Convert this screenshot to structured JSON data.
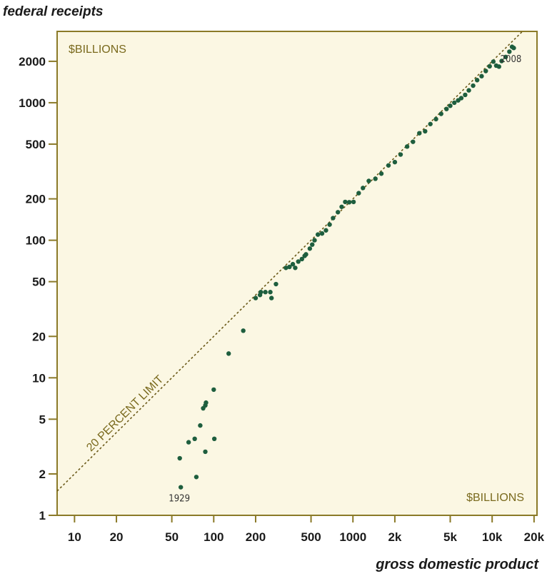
{
  "chart_data": {
    "type": "scatter",
    "ylabel": "federal receipts",
    "xlabel": "gross domestic product",
    "x_scale": "log",
    "y_scale": "log",
    "xlim": [
      7.5,
      21000
    ],
    "ylim": [
      1,
      3300
    ],
    "x_ticks": [
      {
        "value": 10,
        "label": "10"
      },
      {
        "value": 20,
        "label": "20"
      },
      {
        "value": 50,
        "label": "50"
      },
      {
        "value": 100,
        "label": "100"
      },
      {
        "value": 200,
        "label": "200"
      },
      {
        "value": 500,
        "label": "500"
      },
      {
        "value": 1000,
        "label": "1000"
      },
      {
        "value": 2000,
        "label": "2k"
      },
      {
        "value": 5000,
        "label": "5k"
      },
      {
        "value": 10000,
        "label": "10k"
      },
      {
        "value": 20000,
        "label": "20k"
      }
    ],
    "y_ticks": [
      {
        "value": 1,
        "label": "1"
      },
      {
        "value": 2,
        "label": "2"
      },
      {
        "value": 5,
        "label": "5"
      },
      {
        "value": 10,
        "label": "10"
      },
      {
        "value": 20,
        "label": "20"
      },
      {
        "value": 50,
        "label": "50"
      },
      {
        "value": 100,
        "label": "100"
      },
      {
        "value": 200,
        "label": "200"
      },
      {
        "value": 500,
        "label": "500"
      },
      {
        "value": 1000,
        "label": "1000"
      },
      {
        "value": 2000,
        "label": "2000"
      }
    ],
    "unit_label_top": "$BILLIONS",
    "unit_label_bottom": "$BILLIONS",
    "reference_line": {
      "label": "20 PERCENT LIMIT",
      "slope": 0.2
    },
    "annotations": [
      {
        "text": "1929",
        "x": 58,
        "y": 1.6
      },
      {
        "text": "2008",
        "x": 14300,
        "y": 2500
      }
    ],
    "points": [
      [
        58,
        1.6
      ],
      [
        57,
        2.6
      ],
      [
        66,
        3.4
      ],
      [
        73,
        3.6
      ],
      [
        75,
        1.9
      ],
      [
        80,
        4.5
      ],
      [
        84,
        6.0
      ],
      [
        87,
        6.3
      ],
      [
        87,
        2.9
      ],
      [
        88,
        6.6
      ],
      [
        100,
        8.2
      ],
      [
        101,
        3.6
      ],
      [
        128,
        15
      ],
      [
        163,
        22
      ],
      [
        200,
        38
      ],
      [
        215,
        40
      ],
      [
        218,
        42
      ],
      [
        235,
        42
      ],
      [
        255,
        42
      ],
      [
        260,
        38
      ],
      [
        280,
        48
      ],
      [
        330,
        63
      ],
      [
        350,
        64
      ],
      [
        370,
        67
      ],
      [
        385,
        63
      ],
      [
        405,
        70
      ],
      [
        430,
        73
      ],
      [
        450,
        77
      ],
      [
        460,
        79
      ],
      [
        490,
        87
      ],
      [
        510,
        93
      ],
      [
        530,
        100
      ],
      [
        560,
        110
      ],
      [
        600,
        112
      ],
      [
        640,
        118
      ],
      [
        680,
        130
      ],
      [
        720,
        145
      ],
      [
        780,
        160
      ],
      [
        830,
        175
      ],
      [
        880,
        190
      ],
      [
        940,
        189
      ],
      [
        1010,
        190
      ],
      [
        1100,
        220
      ],
      [
        1180,
        240
      ],
      [
        1300,
        270
      ],
      [
        1450,
        280
      ],
      [
        1600,
        305
      ],
      [
        1800,
        350
      ],
      [
        2000,
        370
      ],
      [
        2200,
        420
      ],
      [
        2450,
        480
      ],
      [
        2700,
        520
      ],
      [
        3000,
        600
      ],
      [
        3300,
        620
      ],
      [
        3600,
        700
      ],
      [
        3950,
        760
      ],
      [
        4300,
        830
      ],
      [
        4700,
        900
      ],
      [
        5000,
        950
      ],
      [
        5350,
        1000
      ],
      [
        5700,
        1040
      ],
      [
        6000,
        1080
      ],
      [
        6400,
        1140
      ],
      [
        6800,
        1230
      ],
      [
        7300,
        1330
      ],
      [
        7800,
        1460
      ],
      [
        8400,
        1560
      ],
      [
        9000,
        1700
      ],
      [
        9600,
        1840
      ],
      [
        10200,
        1990
      ],
      [
        10700,
        1860
      ],
      [
        11200,
        1830
      ],
      [
        11700,
        2010
      ],
      [
        12500,
        2150
      ],
      [
        13300,
        2350
      ],
      [
        13900,
        2550
      ],
      [
        14300,
        2500
      ]
    ]
  },
  "colors": {
    "plot_bg": "#fbf7e3",
    "frame": "#8b7a28",
    "point": "#1e5e3e",
    "ref_line": "#6b5a1a",
    "tick_label": "#1a1a1a"
  }
}
